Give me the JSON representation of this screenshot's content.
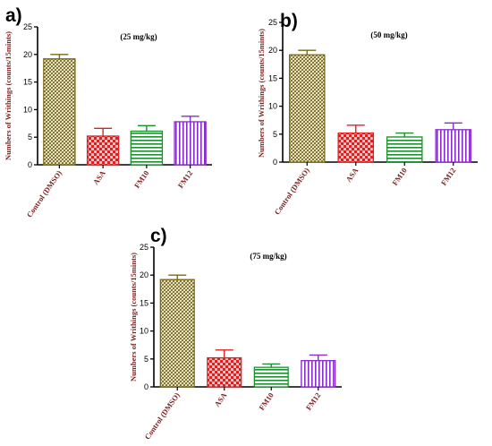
{
  "figure": {
    "ylabel": "Numbers of Writhings (counts/15mints)",
    "categories": [
      "Control (DMSO)",
      "ASA",
      "FM10",
      "FM12"
    ]
  },
  "colors": {
    "control": "#7a6a12",
    "asa": "#e02020",
    "fm10": "#1e8f2e",
    "fm12": "#8a2ad0"
  },
  "chart_data": [
    {
      "type": "bar",
      "panel": "a)",
      "title": "(25 mg/kg)",
      "ylabel": "Numbers of Writhings (counts/15mints)",
      "categories": [
        "Control (DMSO)",
        "ASA",
        "FM10",
        "FM12"
      ],
      "values": [
        19.2,
        5.2,
        6.1,
        7.8
      ],
      "errors": [
        0.8,
        1.4,
        1.0,
        1.0
      ],
      "ylim": [
        0,
        25
      ],
      "yticks": [
        0,
        5,
        10,
        15,
        20,
        25
      ]
    },
    {
      "type": "bar",
      "panel": "b)",
      "title": "(50 mg/kg)",
      "ylabel": "Numbers of Writhings (counts/15mints)",
      "categories": [
        "Control (DMSO)",
        "ASA",
        "FM10",
        "FM12"
      ],
      "values": [
        19.2,
        5.2,
        4.5,
        5.8
      ],
      "errors": [
        0.8,
        1.4,
        0.7,
        1.2
      ],
      "ylim": [
        0,
        25
      ],
      "yticks": [
        0,
        5,
        10,
        15,
        20,
        25
      ]
    },
    {
      "type": "bar",
      "panel": "c)",
      "title": "(75 mg/kg)",
      "ylabel": "Numbers of Writhings (counts/15mints)",
      "categories": [
        "Control (DMSO)",
        "ASA",
        "FM10",
        "FM12"
      ],
      "values": [
        19.2,
        5.2,
        3.5,
        4.7
      ],
      "errors": [
        0.8,
        1.4,
        0.6,
        1.0
      ],
      "ylim": [
        0,
        25
      ],
      "yticks": [
        0,
        5,
        10,
        15,
        20,
        25
      ]
    }
  ]
}
